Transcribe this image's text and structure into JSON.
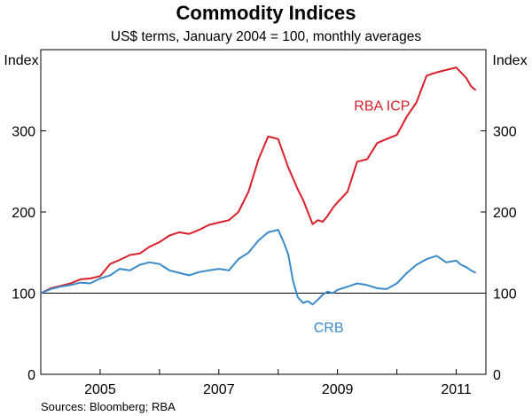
{
  "chart_data": {
    "type": "line",
    "title": "Commodity Indices",
    "subtitle": "US$ terms, January 2004 = 100, monthly averages",
    "ylabel_left": "Index",
    "ylabel_right": "Index",
    "ylim": [
      0,
      400
    ],
    "yticks": [
      0,
      100,
      200,
      300
    ],
    "xlim": [
      2004.0,
      2011.5
    ],
    "xticks": [
      {
        "label": "2005",
        "value": 2005.5
      },
      {
        "label": "2007",
        "value": 2007.5
      },
      {
        "label": "2009",
        "value": 2009.5
      },
      {
        "label": "2011",
        "value": 2011.5
      }
    ],
    "source": "Sources: Bloomberg; RBA",
    "series": [
      {
        "name": "RBA ICP",
        "color": "#d9202a",
        "x": [
          2004.0,
          2004.17,
          2004.33,
          2004.5,
          2004.67,
          2004.83,
          2005.0,
          2005.17,
          2005.33,
          2005.5,
          2005.67,
          2005.83,
          2006.0,
          2006.17,
          2006.33,
          2006.5,
          2006.67,
          2006.83,
          2007.0,
          2007.17,
          2007.33,
          2007.5,
          2007.67,
          2007.83,
          2008.0,
          2008.17,
          2008.33,
          2008.42,
          2008.5,
          2008.58,
          2008.67,
          2008.75,
          2008.83,
          2008.92,
          2009.0,
          2009.08,
          2009.17,
          2009.33,
          2009.5,
          2009.67,
          2009.83,
          2010.0,
          2010.17,
          2010.33,
          2010.5,
          2010.67,
          2010.83,
          2011.0,
          2011.08,
          2011.17,
          2011.25,
          2011.33
        ],
        "values": [
          100,
          106,
          109,
          112,
          117,
          118,
          121,
          136,
          141,
          147,
          149,
          157,
          163,
          171,
          175,
          173,
          178,
          184,
          187,
          190,
          200,
          225,
          265,
          293,
          290,
          255,
          228,
          215,
          200,
          185,
          190,
          188,
          195,
          205,
          212,
          218,
          225,
          262,
          265,
          285,
          290,
          295,
          318,
          335,
          368,
          372,
          375,
          378,
          372,
          365,
          355,
          350
        ],
        "label_text": "RBA ICP"
      },
      {
        "name": "CRB",
        "color": "#3b8ac9",
        "x": [
          2004.0,
          2004.17,
          2004.33,
          2004.5,
          2004.67,
          2004.83,
          2005.0,
          2005.17,
          2005.33,
          2005.5,
          2005.67,
          2005.83,
          2006.0,
          2006.17,
          2006.33,
          2006.5,
          2006.67,
          2006.83,
          2007.0,
          2007.17,
          2007.33,
          2007.5,
          2007.67,
          2007.83,
          2008.0,
          2008.08,
          2008.17,
          2008.25,
          2008.33,
          2008.42,
          2008.5,
          2008.58,
          2008.67,
          2008.75,
          2008.83,
          2008.92,
          2009.0,
          2009.17,
          2009.33,
          2009.5,
          2009.67,
          2009.83,
          2010.0,
          2010.17,
          2010.33,
          2010.5,
          2010.67,
          2010.83,
          2011.0,
          2011.08,
          2011.17,
          2011.25,
          2011.33
        ],
        "values": [
          100,
          105,
          108,
          110,
          113,
          112,
          118,
          122,
          130,
          128,
          135,
          138,
          136,
          128,
          125,
          122,
          126,
          128,
          130,
          128,
          142,
          150,
          165,
          175,
          178,
          165,
          148,
          115,
          95,
          88,
          90,
          86,
          92,
          98,
          102,
          100,
          104,
          108,
          112,
          110,
          106,
          105,
          112,
          125,
          135,
          142,
          146,
          138,
          140,
          135,
          132,
          128,
          125
        ],
        "label_text": "CRB"
      }
    ]
  }
}
